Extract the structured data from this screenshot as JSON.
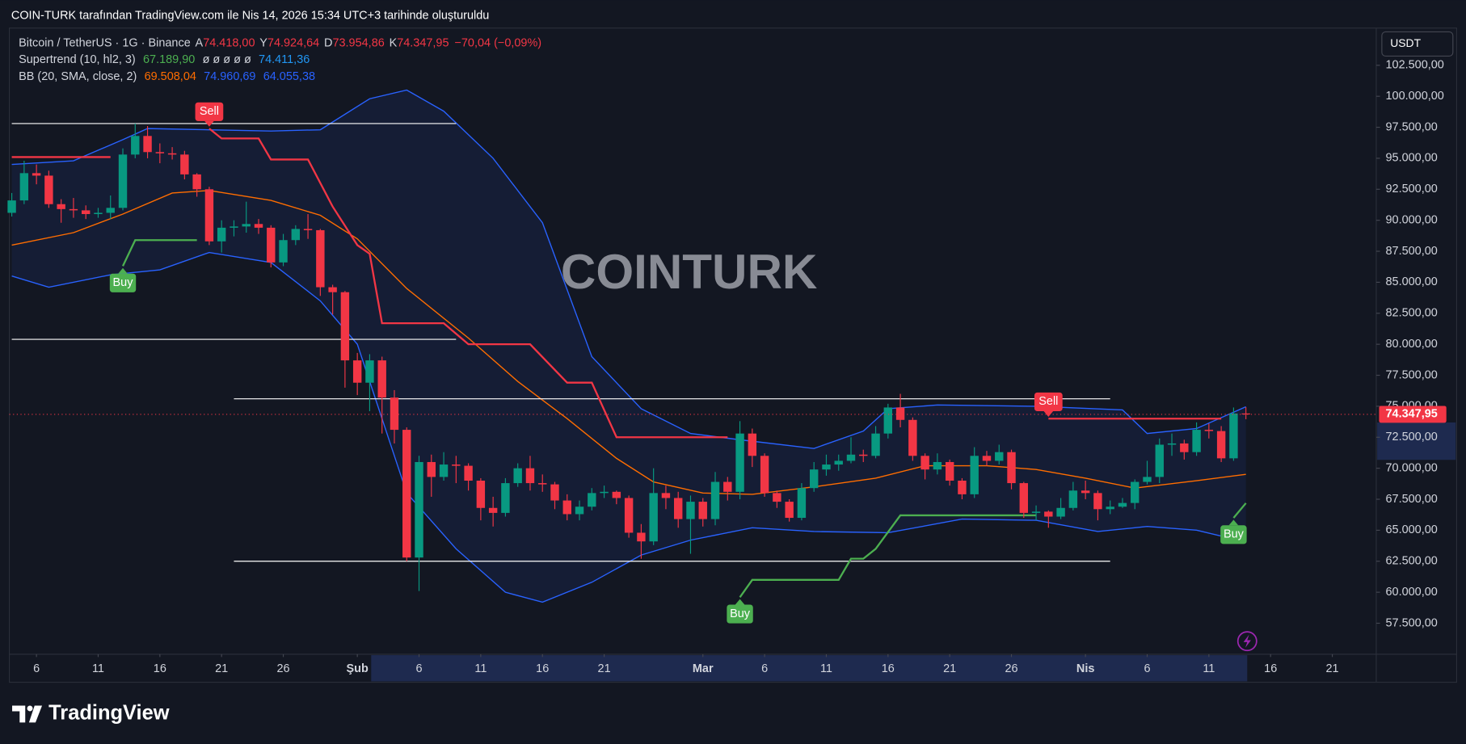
{
  "chart_data": {
    "type": "candlestick",
    "header": "COIN-TURK tarafından TradingView.com ile Nis 14, 2026 15:34 UTC+3 tarihinde oluşturuldu",
    "symbol": "Bitcoin / TetherUS · 1G · Binance",
    "ohlc_legend": [
      {
        "key": "A",
        "label": "74.418,00"
      },
      {
        "key": "Y",
        "label": "74.924,64"
      },
      {
        "key": "D",
        "label": "73.954,86"
      },
      {
        "key": "K",
        "label": "74.347,95"
      }
    ],
    "change_label": "−70,04 (−0,09%)",
    "currency": "USDT",
    "watermark": "COINTURK",
    "brand": "TradingView",
    "last_price_label": "74.347,95",
    "up_color": "#089981",
    "down_color": "#f23645",
    "x": [
      "01-04",
      "01-05",
      "01-06",
      "01-07",
      "01-08",
      "01-09",
      "01-10",
      "01-11",
      "01-12",
      "01-13",
      "01-14",
      "01-15",
      "01-16",
      "01-17",
      "01-18",
      "01-19",
      "01-20",
      "01-21",
      "01-22",
      "01-23",
      "01-24",
      "01-25",
      "01-26",
      "01-27",
      "01-28",
      "01-29",
      "01-30",
      "01-31",
      "02-01",
      "02-02",
      "02-03",
      "02-04",
      "02-05",
      "02-06",
      "02-07",
      "02-08",
      "02-09",
      "02-10",
      "02-11",
      "02-12",
      "02-13",
      "02-14",
      "02-15",
      "02-16",
      "02-17",
      "02-18",
      "02-19",
      "02-20",
      "02-21",
      "02-22",
      "02-23",
      "02-24",
      "02-25",
      "02-26",
      "02-27",
      "02-28",
      "03-01",
      "03-02",
      "03-03",
      "03-04",
      "03-05",
      "03-06",
      "03-07",
      "03-08",
      "03-09",
      "03-10",
      "03-11",
      "03-12",
      "03-13",
      "03-14",
      "03-15",
      "03-16",
      "03-17",
      "03-18",
      "03-19",
      "03-20",
      "03-21",
      "03-22",
      "03-23",
      "03-24",
      "03-25",
      "03-26",
      "03-27",
      "03-28",
      "03-29",
      "03-30",
      "03-31",
      "04-01",
      "04-02",
      "04-03",
      "04-04",
      "04-05",
      "04-06",
      "04-07",
      "04-08",
      "04-09",
      "04-10",
      "04-11",
      "04-12",
      "04-13",
      "04-14"
    ],
    "open": [
      90600,
      91600,
      93800,
      93600,
      91300,
      90900,
      90800,
      90500,
      90600,
      91000,
      95300,
      96800,
      95500,
      95400,
      95300,
      93700,
      92500,
      88300,
      89400,
      89500,
      89700,
      89400,
      86600,
      88400,
      89300,
      89200,
      84600,
      84200,
      78700,
      76900,
      78700,
      75700,
      73100,
      62800,
      70500,
      69300,
      70300,
      70200,
      69000,
      66800,
      66400,
      68800,
      70000,
      68800,
      68700,
      67400,
      66300,
      66900,
      68000,
      68100,
      67600,
      64800,
      64100,
      68000,
      67600,
      65900,
      67300,
      65900,
      68900,
      68100,
      72800,
      71000,
      68000,
      67300,
      66000,
      68400,
      69900,
      70300,
      70600,
      71100,
      71000,
      72800,
      74900,
      73900,
      71000,
      69900,
      70500,
      69000,
      67900,
      71000,
      70600,
      71300,
      68800,
      66400,
      66500,
      66100,
      66800,
      68200,
      68000,
      66700,
      66900,
      67200,
      68900,
      69300,
      71900,
      72000,
      71300,
      73100,
      73000,
      70800,
      74418
    ],
    "high": [
      92200,
      94800,
      94500,
      94000,
      91700,
      91800,
      91200,
      91000,
      92000,
      95800,
      97800,
      97600,
      96200,
      95900,
      95600,
      93800,
      92700,
      90000,
      90000,
      91500,
      90100,
      89600,
      88900,
      89600,
      90500,
      89300,
      84800,
      84300,
      79300,
      79200,
      79000,
      76300,
      73300,
      71000,
      71100,
      71300,
      71000,
      70400,
      69200,
      67700,
      69200,
      70400,
      71000,
      69500,
      68900,
      67900,
      67400,
      68400,
      68600,
      68200,
      67800,
      65500,
      70000,
      68600,
      68100,
      67800,
      67600,
      69700,
      69300,
      73800,
      73200,
      71200,
      68200,
      67500,
      68800,
      70500,
      71100,
      71100,
      72500,
      71500,
      73400,
      75200,
      76000,
      74100,
      71200,
      71200,
      70700,
      69200,
      71700,
      71400,
      71900,
      71500,
      68900,
      67000,
      66600,
      67600,
      68900,
      69000,
      68200,
      67400,
      67600,
      69100,
      70600,
      72400,
      72800,
      72300,
      73700,
      73600,
      73400,
      74900,
      74924.64
    ],
    "low": [
      90300,
      91300,
      92900,
      91000,
      89800,
      90200,
      90100,
      90200,
      90100,
      90800,
      95000,
      95000,
      94600,
      94900,
      93300,
      91900,
      88000,
      87400,
      88700,
      89000,
      88900,
      86200,
      86300,
      88000,
      88500,
      83900,
      82400,
      76500,
      75900,
      74600,
      72800,
      72000,
      62500,
      60100,
      67700,
      69000,
      68800,
      68200,
      65800,
      65300,
      66100,
      68500,
      68200,
      68100,
      66700,
      65800,
      65800,
      66600,
      67600,
      67100,
      64400,
      62700,
      63800,
      66700,
      65200,
      63100,
      65300,
      65400,
      67400,
      67500,
      70100,
      67700,
      66800,
      65700,
      65800,
      68100,
      69400,
      69800,
      70400,
      70500,
      70800,
      72400,
      73300,
      70600,
      69100,
      69500,
      68600,
      67500,
      67600,
      70200,
      70300,
      68300,
      66000,
      65800,
      65200,
      65900,
      66600,
      67500,
      65800,
      66300,
      66800,
      66700,
      68700,
      68800,
      71000,
      70700,
      71000,
      72400,
      70500,
      70600,
      73954.86
    ],
    "close": [
      91600,
      93800,
      93600,
      91300,
      90900,
      90800,
      90500,
      90600,
      91000,
      95300,
      96800,
      95500,
      95400,
      95300,
      93700,
      92500,
      88300,
      89400,
      89500,
      89700,
      89400,
      86600,
      88400,
      89300,
      89200,
      84600,
      84200,
      78700,
      76900,
      78700,
      75700,
      73100,
      62800,
      70500,
      69300,
      70300,
      70200,
      69000,
      66800,
      66400,
      68800,
      70000,
      68800,
      68700,
      67400,
      66300,
      66900,
      68000,
      68100,
      67600,
      64800,
      64100,
      68000,
      67600,
      65900,
      67300,
      65900,
      68900,
      68100,
      72800,
      71000,
      68000,
      67300,
      66000,
      68400,
      69900,
      70300,
      70600,
      71100,
      71000,
      72800,
      74900,
      73900,
      71000,
      69900,
      70500,
      69000,
      67900,
      71000,
      70600,
      71300,
      68800,
      66400,
      66500,
      66100,
      66800,
      68200,
      68000,
      66700,
      66900,
      67200,
      68900,
      69300,
      71900,
      72000,
      71300,
      73100,
      73000,
      70800,
      74418,
      74347.95
    ],
    "xlim": [
      "01-04",
      "04-24"
    ],
    "xticks": [
      {
        "value": "01-06",
        "label": "6"
      },
      {
        "value": "01-11",
        "label": "11"
      },
      {
        "value": "01-16",
        "label": "16"
      },
      {
        "value": "01-21",
        "label": "21"
      },
      {
        "value": "01-26",
        "label": "26"
      },
      {
        "value": "02-01",
        "label": "Şub"
      },
      {
        "value": "02-06",
        "label": "6"
      },
      {
        "value": "02-11",
        "label": "11"
      },
      {
        "value": "02-16",
        "label": "16"
      },
      {
        "value": "02-21",
        "label": "21"
      },
      {
        "value": "03-01",
        "label": "Mar"
      },
      {
        "value": "03-06",
        "label": "6"
      },
      {
        "value": "03-11",
        "label": "11"
      },
      {
        "value": "03-16",
        "label": "16"
      },
      {
        "value": "03-21",
        "label": "21"
      },
      {
        "value": "03-26",
        "label": "26"
      },
      {
        "value": "04-01",
        "label": "Nis"
      },
      {
        "value": "04-06",
        "label": "6"
      },
      {
        "value": "04-11",
        "label": "11"
      },
      {
        "value": "04-16",
        "label": "16"
      },
      {
        "value": "04-21",
        "label": "21"
      }
    ],
    "ylim": [
      55000,
      105500
    ],
    "yticks": [
      {
        "value": 57500,
        "label": "57.500,00"
      },
      {
        "value": 60000,
        "label": "60.000,00"
      },
      {
        "value": 62500,
        "label": "62.500,00"
      },
      {
        "value": 65000,
        "label": "65.000,00"
      },
      {
        "value": 67500,
        "label": "67.500,00"
      },
      {
        "value": 70000,
        "label": "70.000,00"
      },
      {
        "value": 72500,
        "label": "72.500,00"
      },
      {
        "value": 75000,
        "label": "75.000,00"
      },
      {
        "value": 77500,
        "label": "77.500,00"
      },
      {
        "value": 80000,
        "label": "80.000,00"
      },
      {
        "value": 82500,
        "label": "82.500,00"
      },
      {
        "value": 85000,
        "label": "85.000,00"
      },
      {
        "value": 87500,
        "label": "87.500,00"
      },
      {
        "value": 90000,
        "label": "90.000,00"
      },
      {
        "value": 92500,
        "label": "92.500,00"
      },
      {
        "value": 95000,
        "label": "95.000,00"
      },
      {
        "value": 97500,
        "label": "97.500,00"
      },
      {
        "value": 100000,
        "label": "100.000,00"
      },
      {
        "value": 102500,
        "label": "102.500,00"
      }
    ],
    "supertrend": {
      "name": "Supertrend (10, hl2, 3)",
      "value_labels": [
        "67.189,90",
        "74.411,36"
      ],
      "legend_colors": [
        "#4caf50",
        "#2196f3"
      ],
      "placeholder": "ø ø ø ø ø",
      "segments": [
        {
          "color": "#f23645",
          "x": [
            "01-04",
            "01-12"
          ],
          "values": [
            95100,
            95100
          ]
        },
        {
          "color": "#4caf50",
          "x": [
            "01-13",
            "01-14",
            "01-19"
          ],
          "values": [
            86300,
            88400,
            88400
          ]
        },
        {
          "color": "#f23645",
          "x": [
            "01-20",
            "01-21",
            "01-24",
            "01-25",
            "01-28",
            "01-30",
            "02-01",
            "02-02",
            "02-03",
            "02-08",
            "02-10",
            "02-15",
            "02-18",
            "02-20",
            "02-22",
            "03-03"
          ],
          "values": [
            97400,
            96600,
            96600,
            94900,
            94900,
            91100,
            88000,
            87300,
            81700,
            81700,
            80000,
            80000,
            76900,
            76900,
            72500,
            72500
          ]
        },
        {
          "color": "#4caf50",
          "x": [
            "03-04",
            "03-05",
            "03-12",
            "03-13",
            "03-14",
            "03-15",
            "03-17",
            "03-28"
          ],
          "values": [
            59600,
            61000,
            61000,
            62700,
            62700,
            63500,
            66200,
            66200
          ]
        },
        {
          "color": "#f23645",
          "x": [
            "03-29",
            "04-12"
          ],
          "values": [
            74000,
            74000
          ]
        },
        {
          "color": "#4caf50",
          "x": [
            "04-13",
            "04-14"
          ],
          "values": [
            66000,
            67189.9
          ]
        }
      ]
    },
    "bollinger": {
      "name": "BB (20, SMA, close, 2)",
      "fill": "#2962ff",
      "bands": [
        {
          "color": "#ff6d00",
          "value_label": "69.508,04",
          "x": [
            "01-04",
            "01-09",
            "01-13",
            "01-17",
            "01-20",
            "01-25",
            "01-29",
            "02-01",
            "02-05",
            "02-10",
            "02-14",
            "02-18",
            "02-22",
            "02-25",
            "03-01",
            "03-05",
            "03-10",
            "03-15",
            "03-19",
            "03-24",
            "03-28",
            "04-01",
            "04-05",
            "04-10",
            "04-14"
          ],
          "values": [
            88000,
            89000,
            90500,
            92200,
            92400,
            91600,
            90400,
            88500,
            84500,
            80500,
            77000,
            74000,
            70800,
            68900,
            68000,
            67900,
            68500,
            69200,
            70200,
            70200,
            69900,
            69200,
            68400,
            69000,
            69508.04
          ]
        },
        {
          "color": "#2962ff",
          "value_label": "74.960,69",
          "x": [
            "01-04",
            "01-09",
            "01-13",
            "01-15",
            "01-20",
            "01-25",
            "01-29",
            "02-02",
            "02-05",
            "02-08",
            "02-12",
            "02-16",
            "02-20",
            "02-24",
            "02-28",
            "03-04",
            "03-10",
            "03-14",
            "03-16",
            "03-20",
            "03-28",
            "04-04",
            "04-06",
            "04-10",
            "04-14"
          ],
          "values": [
            94500,
            94800,
            96500,
            97400,
            97300,
            97200,
            97300,
            99800,
            100500,
            98800,
            95000,
            89800,
            79000,
            74800,
            72800,
            72300,
            71600,
            73000,
            74800,
            75100,
            75000,
            74700,
            72800,
            73200,
            74960.69
          ]
        },
        {
          "color": "#2962ff",
          "value_label": "64.055,38",
          "x": [
            "01-04",
            "01-07",
            "01-12",
            "01-16",
            "01-20",
            "01-25",
            "01-29",
            "02-01",
            "02-05",
            "02-09",
            "02-13",
            "02-16",
            "02-20",
            "02-24",
            "02-28",
            "03-05",
            "03-10",
            "03-16",
            "03-22",
            "03-28",
            "04-02",
            "04-06",
            "04-10",
            "04-14"
          ],
          "values": [
            85500,
            84600,
            85600,
            86000,
            87400,
            86600,
            83500,
            80000,
            68000,
            63500,
            60000,
            59200,
            60800,
            63000,
            64200,
            65200,
            64900,
            64800,
            65900,
            65800,
            64900,
            65300,
            65000,
            64055.38
          ]
        }
      ]
    },
    "signals": [
      {
        "label": "Buy",
        "x": "01-13",
        "value": 86300
      },
      {
        "label": "Sell",
        "x": "01-20",
        "value": 97400
      },
      {
        "label": "Buy",
        "x": "03-04",
        "value": 59600
      },
      {
        "label": "Sell",
        "x": "03-29",
        "value": 74000
      },
      {
        "label": "Buy",
        "x": "04-13",
        "value": 66000
      }
    ],
    "drawn_lines": [
      {
        "value": 97800,
        "x": [
          "01-04",
          "02-09"
        ]
      },
      {
        "value": 80400,
        "x": [
          "01-04",
          "02-09"
        ]
      },
      {
        "value": 75600,
        "x": [
          "01-22",
          "04-03"
        ]
      },
      {
        "value": 62500,
        "x": [
          "01-22",
          "04-03"
        ]
      }
    ]
  }
}
